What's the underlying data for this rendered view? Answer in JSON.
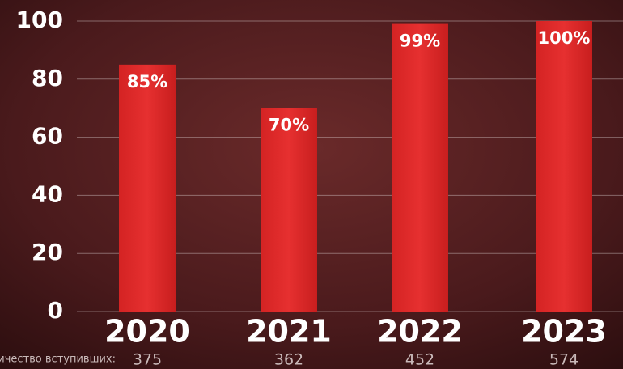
{
  "chart_data": {
    "type": "bar",
    "categories": [
      "2020",
      "2021",
      "2022",
      "2023"
    ],
    "values": [
      85,
      70,
      99,
      100
    ],
    "value_labels": [
      "85%",
      "70%",
      "99%",
      "100%"
    ],
    "color": "#e02b2b",
    "ylim": [
      0,
      100
    ],
    "yticks": [
      0,
      20,
      40,
      60,
      80,
      100
    ],
    "grid": true,
    "count_label": "Количество вступивших:",
    "counts": [
      375,
      362,
      452,
      574
    ]
  }
}
